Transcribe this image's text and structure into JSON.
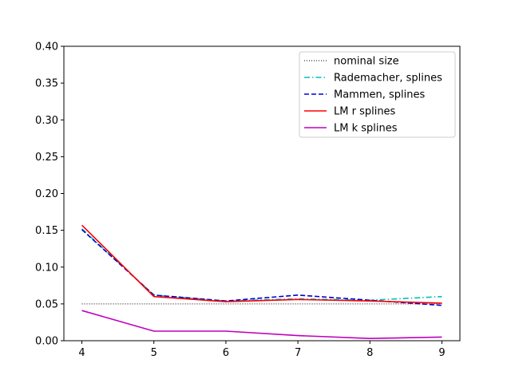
{
  "chart_data": {
    "type": "line",
    "title": "",
    "xlabel": "",
    "ylabel": "",
    "x": [
      4,
      5,
      6,
      7,
      8,
      9
    ],
    "xlim": [
      3.75,
      9.25
    ],
    "ylim": [
      0.0,
      0.4
    ],
    "x_ticks": [
      "4",
      "5",
      "6",
      "7",
      "8",
      "9"
    ],
    "y_ticks": [
      "0.00",
      "0.05",
      "0.10",
      "0.15",
      "0.20",
      "0.25",
      "0.30",
      "0.35",
      "0.40"
    ],
    "grid": false,
    "legend_position": "top-right",
    "series": [
      {
        "name": "nominal size",
        "values": [
          0.05,
          0.05,
          0.05,
          0.05,
          0.05,
          0.05
        ],
        "color": "#000000",
        "style": "dotted"
      },
      {
        "name": "Rademacher, splines",
        "values": [
          0.152,
          0.062,
          0.054,
          0.057,
          0.055,
          0.06
        ],
        "color": "#00bfbf",
        "style": "dashdot"
      },
      {
        "name": "Mammen, splines",
        "values": [
          0.151,
          0.062,
          0.054,
          0.062,
          0.055,
          0.048
        ],
        "color": "#0000cc",
        "style": "dashed"
      },
      {
        "name": "LM r splines",
        "values": [
          0.157,
          0.06,
          0.053,
          0.056,
          0.054,
          0.051
        ],
        "color": "#ff0000",
        "style": "solid"
      },
      {
        "name": "LM k splines",
        "values": [
          0.041,
          0.013,
          0.013,
          0.007,
          0.003,
          0.005
        ],
        "color": "#bf00bf",
        "style": "solid"
      }
    ]
  }
}
